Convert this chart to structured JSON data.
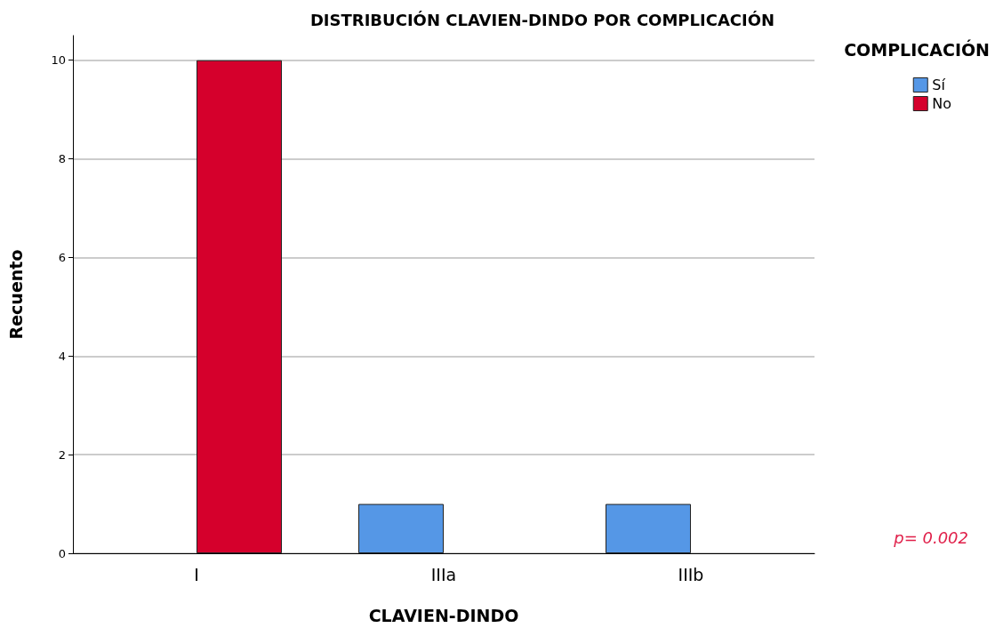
{
  "chart_data": {
    "type": "bar",
    "title": "DISTRIBUCIÓN CLAVIEN-DINDO POR COMPLICACIÓN",
    "xlabel": "CLAVIEN-DINDO",
    "ylabel": "Recuento",
    "legend_title": "COMPLICACIÓN",
    "categories": [
      "I",
      "IIIa",
      "IIIb"
    ],
    "series": [
      {
        "name": "Sí",
        "color": "#5597e6",
        "values": [
          null,
          1,
          1
        ]
      },
      {
        "name": "No",
        "color": "#d5002c",
        "values": [
          10,
          null,
          null
        ]
      }
    ],
    "ylim": [
      0,
      10.5
    ],
    "yticks": [
      0,
      2,
      4,
      6,
      8,
      10
    ],
    "grid": "y",
    "legend": "top right",
    "annotations": [
      "p= 0.002"
    ]
  }
}
